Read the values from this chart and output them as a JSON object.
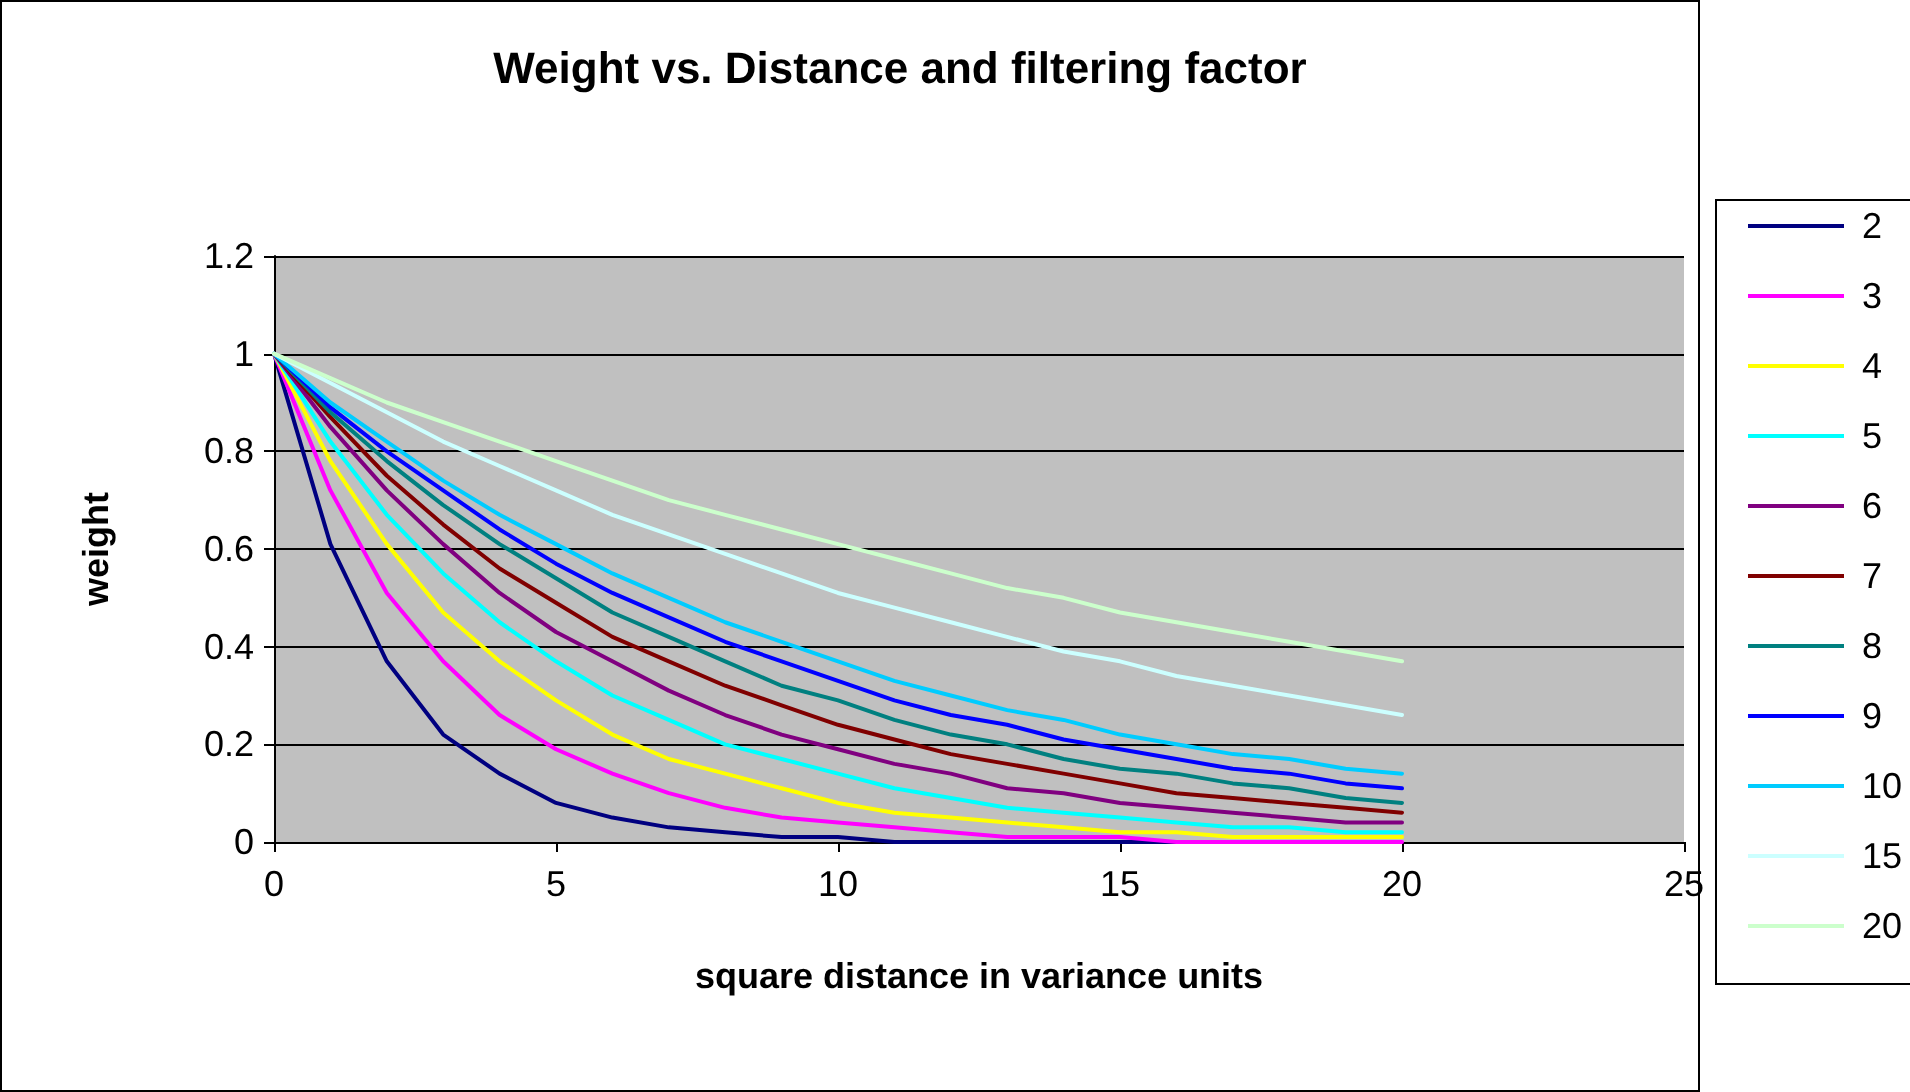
{
  "chart_data": {
    "type": "line",
    "title": "Weight vs. Distance and filtering factor",
    "xlabel": "square distance in variance units",
    "ylabel": "weight",
    "x": [
      0,
      1,
      2,
      3,
      4,
      5,
      6,
      7,
      8,
      9,
      10,
      11,
      12,
      13,
      14,
      15,
      16,
      17,
      18,
      19,
      20
    ],
    "xlim": [
      0,
      25
    ],
    "xticks": [
      0,
      5,
      10,
      15,
      20,
      25
    ],
    "ylim": [
      0,
      1.2
    ],
    "yticks": [
      0,
      0.2,
      0.4,
      0.6,
      0.8,
      1,
      1.2
    ],
    "grid": "y",
    "legend": "right",
    "marker": "none",
    "line_style": "solid",
    "series": [
      {
        "name": "2",
        "color": "#000080",
        "values": [
          1,
          0.61,
          0.37,
          0.22,
          0.14,
          0.08,
          0.05,
          0.03,
          0.02,
          0.01,
          0.01,
          0,
          0,
          0,
          0,
          0,
          0,
          0,
          null,
          null,
          null
        ]
      },
      {
        "name": "3",
        "color": "#ff00ff",
        "values": [
          1,
          0.72,
          0.51,
          0.37,
          0.26,
          0.19,
          0.14,
          0.1,
          0.07,
          0.05,
          0.04,
          0.03,
          0.02,
          0.01,
          0.01,
          0.01,
          0,
          0,
          0,
          0,
          0
        ]
      },
      {
        "name": "4",
        "color": "#ffff00",
        "values": [
          1,
          0.78,
          0.61,
          0.47,
          0.37,
          0.29,
          0.22,
          0.17,
          0.14,
          0.11,
          0.08,
          0.06,
          0.05,
          0.04,
          0.03,
          0.02,
          0.02,
          0.01,
          0.01,
          0.01,
          0.01
        ]
      },
      {
        "name": "5",
        "color": "#00ffff",
        "values": [
          1,
          0.82,
          0.67,
          0.55,
          0.45,
          0.37,
          0.3,
          0.25,
          0.2,
          0.17,
          0.14,
          0.11,
          0.09,
          0.07,
          0.06,
          0.05,
          0.04,
          0.03,
          0.03,
          0.02,
          0.02
        ]
      },
      {
        "name": "6",
        "color": "#800080",
        "values": [
          1,
          0.85,
          0.72,
          0.61,
          0.51,
          0.43,
          0.37,
          0.31,
          0.26,
          0.22,
          0.19,
          0.16,
          0.14,
          0.11,
          0.1,
          0.08,
          0.07,
          0.06,
          0.05,
          0.04,
          0.04
        ]
      },
      {
        "name": "7",
        "color": "#800000",
        "values": [
          1,
          0.87,
          0.75,
          0.65,
          0.56,
          0.49,
          0.42,
          0.37,
          0.32,
          0.28,
          0.24,
          0.21,
          0.18,
          0.16,
          0.14,
          0.12,
          0.1,
          0.09,
          0.08,
          0.07,
          0.06
        ]
      },
      {
        "name": "8",
        "color": "#008080",
        "values": [
          1,
          0.88,
          0.78,
          0.69,
          0.61,
          0.54,
          0.47,
          0.42,
          0.37,
          0.32,
          0.29,
          0.25,
          0.22,
          0.2,
          0.17,
          0.15,
          0.14,
          0.12,
          0.11,
          0.09,
          0.08
        ]
      },
      {
        "name": "9",
        "color": "#0000ff",
        "values": [
          1,
          0.89,
          0.8,
          0.72,
          0.64,
          0.57,
          0.51,
          0.46,
          0.41,
          0.37,
          0.33,
          0.29,
          0.26,
          0.24,
          0.21,
          0.19,
          0.17,
          0.15,
          0.14,
          0.12,
          0.11
        ]
      },
      {
        "name": "10",
        "color": "#00ccff",
        "values": [
          1,
          0.9,
          0.82,
          0.74,
          0.67,
          0.61,
          0.55,
          0.5,
          0.45,
          0.41,
          0.37,
          0.33,
          0.3,
          0.27,
          0.25,
          0.22,
          0.2,
          0.18,
          0.17,
          0.15,
          0.14
        ]
      },
      {
        "name": "15",
        "color": "#ccffff",
        "values": [
          1,
          0.94,
          0.88,
          0.82,
          0.77,
          0.72,
          0.67,
          0.63,
          0.59,
          0.55,
          0.51,
          0.48,
          0.45,
          0.42,
          0.39,
          0.37,
          0.34,
          0.32,
          0.3,
          0.28,
          0.26
        ]
      },
      {
        "name": "20",
        "color": "#ccffcc",
        "values": [
          1,
          0.95,
          0.9,
          0.86,
          0.82,
          0.78,
          0.74,
          0.7,
          0.67,
          0.64,
          0.61,
          0.58,
          0.55,
          0.52,
          0.5,
          0.47,
          0.45,
          0.43,
          0.41,
          0.39,
          0.37
        ]
      }
    ]
  }
}
